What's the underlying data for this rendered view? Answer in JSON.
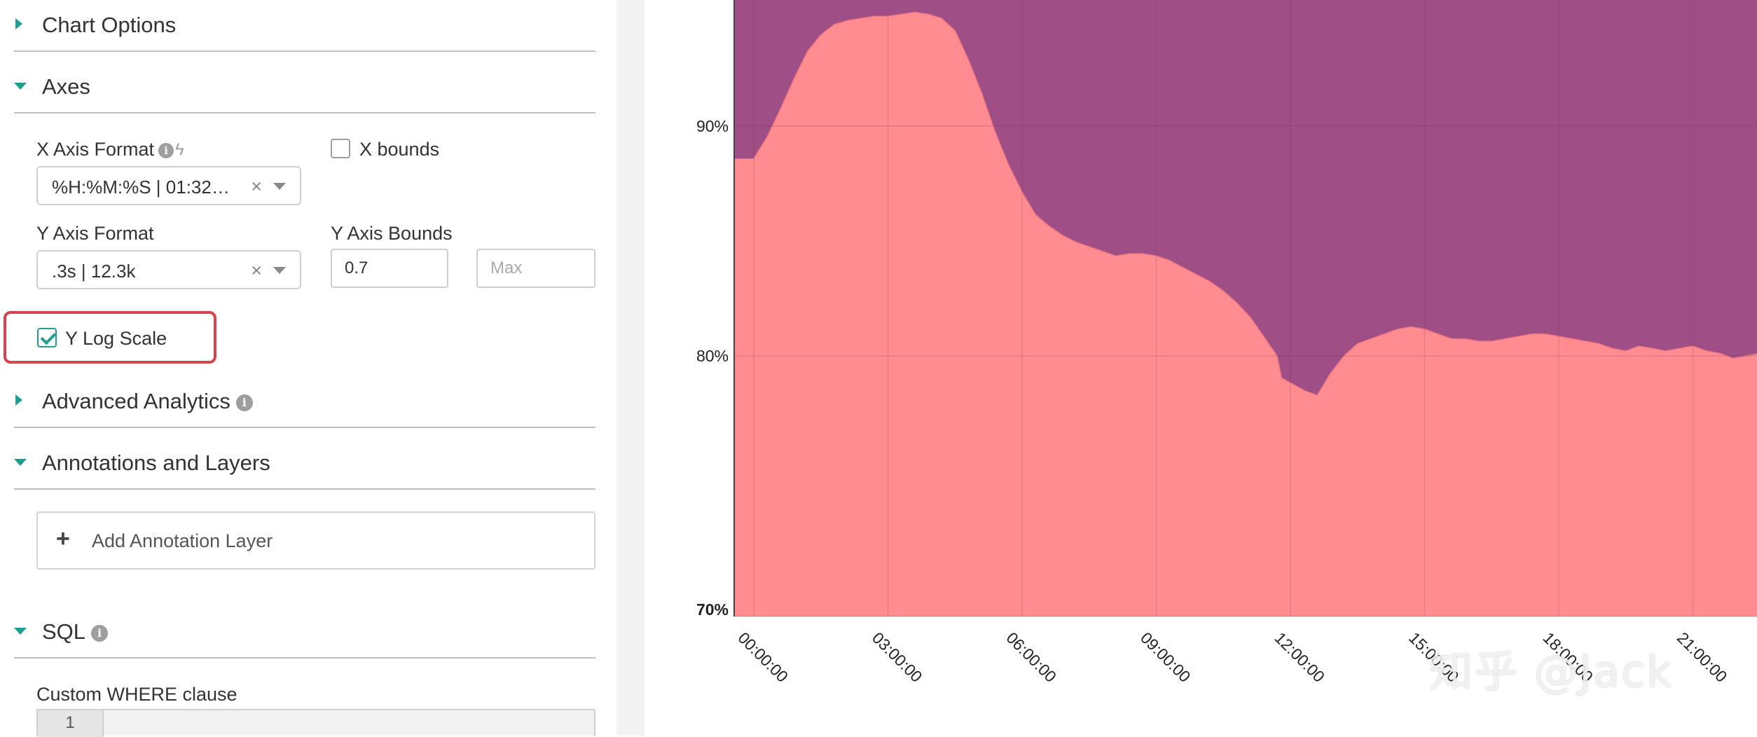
{
  "sections": {
    "chart_options": "Chart Options",
    "axes": "Axes",
    "advanced_analytics": "Advanced Analytics",
    "annotations": "Annotations and Layers",
    "sql": "SQL"
  },
  "axes": {
    "x_format_label": "X Axis Format",
    "x_format_value": "%H:%M:%S | 01:32…",
    "x_bounds_label": "X bounds",
    "x_bounds_checked": false,
    "y_format_label": "Y Axis Format",
    "y_format_value": ".3s | 12.3k",
    "y_bounds_label": "Y Axis Bounds",
    "y_min_value": "0.7",
    "y_max_placeholder": "Max",
    "y_log_label": "Y Log Scale",
    "y_log_checked": true
  },
  "annotations": {
    "add_layer_label": "Add Annotation Layer"
  },
  "sql": {
    "where_label": "Custom WHERE clause",
    "line_number": "1"
  },
  "icons": {
    "clear": "×",
    "plus": "+",
    "info": "i",
    "bolt": "ϟ"
  },
  "watermark": "知乎 @Jack",
  "colors": {
    "accent": "#1f9e8f",
    "highlight": "#d9434c",
    "area_lower": "#fe8c90",
    "area_upper": "#a04f86"
  },
  "chart_data": {
    "type": "area",
    "stacked": true,
    "y_scale": "log",
    "ylim": [
      0.7,
      0.96
    ],
    "x_ticks": [
      "00:00:00",
      "03:00:00",
      "06:00:00",
      "09:00:00",
      "12:00:00",
      "15:00:00",
      "18:00:00",
      "21:00:00"
    ],
    "y_ticks": [
      "70%",
      "80%",
      "90%"
    ],
    "y_tick_values": [
      0.7,
      0.8,
      0.9
    ],
    "x_hours": [
      0,
      0.3,
      0.6,
      0.9,
      1.2,
      1.5,
      1.8,
      2.1,
      2.4,
      2.7,
      3.0,
      3.3,
      3.6,
      3.9,
      4.2,
      4.5,
      4.8,
      5.1,
      5.4,
      5.7,
      6.0,
      6.3,
      6.6,
      6.9,
      7.2,
      7.5,
      7.8,
      8.1,
      8.4,
      8.7,
      9.0,
      9.3,
      9.6,
      9.9,
      10.2,
      10.5,
      10.8,
      11.1,
      11.4,
      11.7,
      11.8,
      12.0,
      12.3,
      12.6,
      12.9,
      13.2,
      13.5,
      13.8,
      14.1,
      14.4,
      14.7,
      15.0,
      15.3,
      15.6,
      15.9,
      16.2,
      16.5,
      16.8,
      17.1,
      17.4,
      17.7,
      18.0,
      18.3,
      18.6,
      18.9,
      19.2,
      19.5,
      19.8,
      20.1,
      20.4,
      20.7,
      21.0,
      21.3,
      21.6,
      21.9,
      22.2,
      22.5,
      22.8
    ],
    "series": [
      {
        "name": "",
        "color": "#fe8c90",
        "values": [
          0.885,
          0.895,
          0.908,
          0.922,
          0.935,
          0.943,
          0.948,
          0.95,
          0.951,
          0.952,
          0.952,
          0.953,
          0.954,
          0.953,
          0.951,
          0.945,
          0.931,
          0.915,
          0.897,
          0.882,
          0.87,
          0.86,
          0.855,
          0.851,
          0.848,
          0.846,
          0.844,
          0.842,
          0.843,
          0.843,
          0.842,
          0.84,
          0.837,
          0.834,
          0.831,
          0.827,
          0.822,
          0.816,
          0.808,
          0.8,
          0.791,
          0.789,
          0.786,
          0.784,
          0.793,
          0.8,
          0.805,
          0.807,
          0.809,
          0.811,
          0.812,
          0.811,
          0.809,
          0.807,
          0.807,
          0.806,
          0.806,
          0.807,
          0.808,
          0.809,
          0.809,
          0.808,
          0.807,
          0.806,
          0.805,
          0.803,
          0.802,
          0.804,
          0.803,
          0.802,
          0.803,
          0.804,
          0.802,
          0.801,
          0.799,
          0.8,
          0.801,
          0.807
        ]
      },
      {
        "name": "",
        "color": "#a04f86",
        "values": [
          1,
          1,
          1,
          1,
          1,
          1,
          1,
          1,
          1,
          1,
          1,
          1,
          1,
          1,
          1,
          1,
          1,
          1,
          1,
          1,
          1,
          1,
          1,
          1,
          1,
          1,
          1,
          1,
          1,
          1,
          1,
          1,
          1,
          1,
          1,
          1,
          1,
          1,
          1,
          1,
          1,
          1,
          1,
          1,
          1,
          1,
          1,
          1,
          1,
          1,
          1,
          1,
          1,
          1,
          1,
          1,
          1,
          1,
          1,
          1,
          1,
          1,
          1,
          1,
          1,
          1,
          1,
          1,
          1,
          1,
          1,
          1,
          1,
          1,
          1,
          1,
          1,
          1
        ]
      }
    ]
  }
}
